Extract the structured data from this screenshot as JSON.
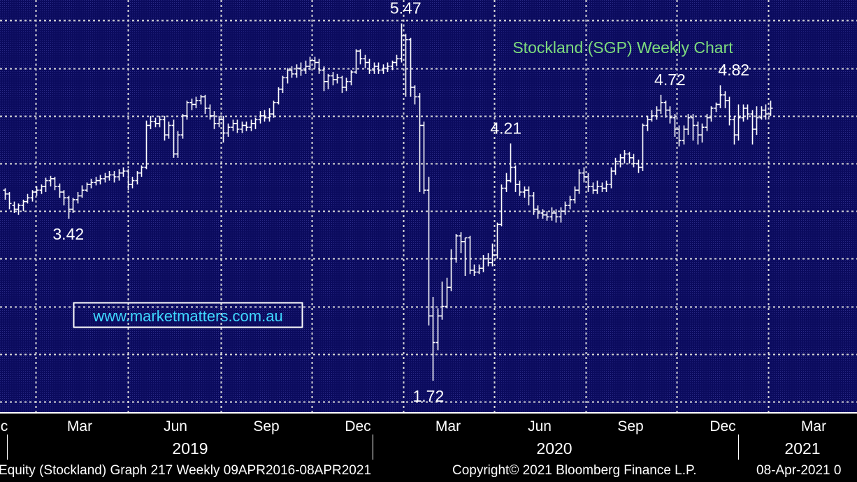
{
  "chart_data": {
    "type": "ohlc",
    "title": "Stockland (SGP) Weekly Chart",
    "watermark": "www.marketmatters.com.au",
    "ylim": [
      1.5,
      5.65
    ],
    "grid": true,
    "colors": {
      "background": "#0b0b5e",
      "bars": "#ffffff",
      "grid": "#d8d8d8",
      "title": "#7ddc7d",
      "watermark": "#3fd8ff"
    },
    "month_ticks": [
      "c",
      "Mar",
      "Jun",
      "Sep",
      "Dec",
      "Mar",
      "Jun",
      "Sep",
      "Dec",
      "Mar"
    ],
    "years": [
      "2019",
      "2020",
      "2021"
    ],
    "annotations": [
      {
        "text": "5.47",
        "week": 88,
        "value": 5.47
      },
      {
        "text": "3.42",
        "week": 14,
        "value": 3.42
      },
      {
        "text": "1.72",
        "week": 93,
        "value": 1.72
      },
      {
        "text": "4.21",
        "week": 110,
        "value": 4.21
      },
      {
        "text": "4.72",
        "week": 146,
        "value": 4.72
      },
      {
        "text": "4.82",
        "week": 160,
        "value": 4.82
      }
    ],
    "series": [
      {
        "values": [
          [
            3.72,
            3.68,
            3.74,
            3.62
          ],
          [
            3.68,
            3.58,
            3.7,
            3.52
          ],
          [
            3.56,
            3.52,
            3.6,
            3.48
          ],
          [
            3.52,
            3.56,
            3.58,
            3.46
          ],
          [
            3.56,
            3.6,
            3.62,
            3.5
          ],
          [
            3.6,
            3.64,
            3.68,
            3.58
          ],
          [
            3.64,
            3.7,
            3.72,
            3.6
          ],
          [
            3.7,
            3.72,
            3.76,
            3.66
          ],
          [
            3.72,
            3.76,
            3.78,
            3.68
          ],
          [
            3.76,
            3.82,
            3.85,
            3.7
          ],
          [
            3.82,
            3.84,
            3.87,
            3.76
          ],
          [
            3.84,
            3.76,
            3.86,
            3.72
          ],
          [
            3.76,
            3.7,
            3.79,
            3.64
          ],
          [
            3.7,
            3.64,
            3.72,
            3.56
          ],
          [
            3.64,
            3.52,
            3.66,
            3.42
          ],
          [
            3.52,
            3.62,
            3.64,
            3.48
          ],
          [
            3.62,
            3.66,
            3.7,
            3.58
          ],
          [
            3.66,
            3.72,
            3.77,
            3.64
          ],
          [
            3.72,
            3.78,
            3.8,
            3.7
          ],
          [
            3.78,
            3.8,
            3.84,
            3.74
          ],
          [
            3.8,
            3.82,
            3.86,
            3.77
          ],
          [
            3.82,
            3.84,
            3.88,
            3.78
          ],
          [
            3.84,
            3.86,
            3.9,
            3.8
          ],
          [
            3.86,
            3.88,
            3.92,
            3.82
          ],
          [
            3.88,
            3.86,
            3.92,
            3.8
          ],
          [
            3.86,
            3.9,
            3.94,
            3.82
          ],
          [
            3.9,
            3.92,
            3.96,
            3.86
          ],
          [
            3.92,
            3.78,
            3.94,
            3.72
          ],
          [
            3.78,
            3.82,
            3.86,
            3.74
          ],
          [
            3.82,
            3.9,
            3.92,
            3.78
          ],
          [
            3.9,
            3.96,
            3.98,
            3.86
          ],
          [
            3.96,
            4.4,
            4.45,
            3.94
          ],
          [
            4.4,
            4.44,
            4.5,
            4.36
          ],
          [
            4.44,
            4.42,
            4.48,
            4.38
          ],
          [
            4.42,
            4.46,
            4.5,
            4.38
          ],
          [
            4.46,
            4.3,
            4.5,
            4.24
          ],
          [
            4.3,
            4.4,
            4.44,
            4.26
          ],
          [
            4.4,
            4.1,
            4.46,
            4.06
          ],
          [
            4.1,
            4.3,
            4.34,
            4.06
          ],
          [
            4.3,
            4.5,
            4.52,
            4.26
          ],
          [
            4.5,
            4.64,
            4.66,
            4.46
          ],
          [
            4.64,
            4.62,
            4.68,
            4.56
          ],
          [
            4.62,
            4.66,
            4.7,
            4.58
          ],
          [
            4.66,
            4.7,
            4.72,
            4.62
          ],
          [
            4.7,
            4.58,
            4.72,
            4.52
          ],
          [
            4.58,
            4.5,
            4.62,
            4.46
          ],
          [
            4.5,
            4.42,
            4.55,
            4.36
          ],
          [
            4.42,
            4.46,
            4.5,
            4.38
          ],
          [
            4.46,
            4.32,
            4.5,
            4.22
          ],
          [
            4.32,
            4.38,
            4.42,
            4.28
          ],
          [
            4.38,
            4.42,
            4.46,
            4.34
          ],
          [
            4.42,
            4.36,
            4.46,
            4.32
          ],
          [
            4.36,
            4.4,
            4.44,
            4.32
          ],
          [
            4.4,
            4.38,
            4.44,
            4.34
          ],
          [
            4.38,
            4.42,
            4.46,
            4.34
          ],
          [
            4.42,
            4.46,
            4.48,
            4.36
          ],
          [
            4.46,
            4.5,
            4.55,
            4.42
          ],
          [
            4.5,
            4.48,
            4.56,
            4.44
          ],
          [
            4.48,
            4.52,
            4.58,
            4.44
          ],
          [
            4.52,
            4.64,
            4.66,
            4.48
          ],
          [
            4.64,
            4.78,
            4.8,
            4.62
          ],
          [
            4.78,
            4.9,
            4.92,
            4.74
          ],
          [
            4.9,
            4.98,
            5.0,
            4.84
          ],
          [
            4.98,
            4.94,
            5.02,
            4.9
          ],
          [
            4.94,
            5.0,
            5.04,
            4.9
          ],
          [
            5.0,
            4.98,
            5.06,
            4.92
          ],
          [
            4.98,
            5.02,
            5.08,
            4.94
          ],
          [
            5.02,
            5.08,
            5.12,
            4.98
          ],
          [
            5.08,
            5.06,
            5.12,
            5.0
          ],
          [
            5.06,
            4.98,
            5.1,
            4.94
          ],
          [
            4.98,
            4.86,
            5.02,
            4.76
          ],
          [
            4.86,
            4.92,
            4.94,
            4.78
          ],
          [
            4.92,
            4.88,
            4.96,
            4.82
          ],
          [
            4.88,
            4.9,
            4.94,
            4.84
          ],
          [
            4.9,
            4.8,
            4.92,
            4.74
          ],
          [
            4.8,
            4.86,
            4.9,
            4.76
          ],
          [
            4.86,
            4.96,
            4.98,
            4.82
          ],
          [
            4.96,
            5.18,
            5.2,
            4.94
          ],
          [
            5.18,
            5.1,
            5.2,
            5.04
          ],
          [
            5.1,
            5.06,
            5.14,
            5.0
          ],
          [
            5.06,
            4.98,
            5.1,
            4.94
          ],
          [
            4.98,
            5.02,
            5.06,
            4.94
          ],
          [
            5.02,
            4.98,
            5.06,
            4.94
          ],
          [
            4.98,
            5.0,
            5.04,
            4.94
          ],
          [
            5.0,
            5.02,
            5.06,
            4.96
          ],
          [
            5.02,
            5.06,
            5.08,
            4.98
          ],
          [
            5.06,
            5.1,
            5.14,
            5.02
          ],
          [
            5.1,
            5.34,
            5.47,
            5.06
          ],
          [
            5.34,
            5.3,
            5.36,
            4.7
          ],
          [
            5.3,
            4.8,
            5.32,
            4.7
          ],
          [
            4.8,
            4.7,
            4.82,
            4.62
          ],
          [
            4.7,
            4.4,
            4.74,
            3.7
          ],
          [
            4.4,
            3.72,
            4.44,
            3.68
          ],
          [
            3.72,
            2.4,
            3.86,
            2.3
          ],
          [
            2.4,
            2.12,
            2.6,
            1.72
          ],
          [
            2.12,
            2.4,
            2.48,
            2.04
          ],
          [
            2.4,
            2.5,
            2.76,
            2.36
          ],
          [
            2.5,
            2.7,
            2.8,
            2.48
          ],
          [
            2.7,
            3.0,
            3.1,
            2.66
          ],
          [
            3.0,
            3.24,
            3.26,
            2.96
          ],
          [
            3.24,
            3.18,
            3.28,
            3.06
          ],
          [
            3.18,
            3.22,
            3.22,
            2.82
          ],
          [
            3.22,
            2.88,
            3.24,
            2.84
          ],
          [
            2.88,
            2.86,
            2.94,
            2.82
          ],
          [
            2.86,
            2.9,
            2.94,
            2.84
          ],
          [
            2.9,
            3.0,
            3.04,
            2.86
          ],
          [
            3.0,
            2.96,
            3.06,
            2.92
          ],
          [
            2.96,
            3.04,
            3.16,
            2.92
          ],
          [
            3.04,
            3.36,
            3.38,
            3.0
          ],
          [
            3.36,
            3.74,
            3.78,
            3.34
          ],
          [
            3.74,
            3.82,
            3.9,
            3.7
          ],
          [
            3.82,
            3.96,
            4.21,
            3.8
          ],
          [
            3.96,
            3.78,
            3.98,
            3.7
          ],
          [
            3.78,
            3.7,
            3.82,
            3.66
          ],
          [
            3.7,
            3.72,
            3.76,
            3.64
          ],
          [
            3.72,
            3.66,
            3.76,
            3.56
          ],
          [
            3.66,
            3.52,
            3.7,
            3.46
          ],
          [
            3.52,
            3.48,
            3.56,
            3.42
          ],
          [
            3.48,
            3.46,
            3.52,
            3.42
          ],
          [
            3.46,
            3.44,
            3.5,
            3.4
          ],
          [
            3.44,
            3.48,
            3.54,
            3.4
          ],
          [
            3.48,
            3.44,
            3.52,
            3.38
          ],
          [
            3.44,
            3.5,
            3.54,
            3.38
          ],
          [
            3.5,
            3.56,
            3.6,
            3.46
          ],
          [
            3.56,
            3.62,
            3.66,
            3.52
          ],
          [
            3.62,
            3.72,
            3.76,
            3.58
          ],
          [
            3.72,
            3.9,
            3.94,
            3.68
          ],
          [
            3.9,
            3.86,
            3.96,
            3.8
          ],
          [
            3.86,
            3.76,
            3.9,
            3.7
          ],
          [
            3.76,
            3.72,
            3.8,
            3.68
          ],
          [
            3.72,
            3.76,
            3.82,
            3.68
          ],
          [
            3.76,
            3.74,
            3.8,
            3.7
          ],
          [
            3.74,
            3.78,
            3.82,
            3.7
          ],
          [
            3.78,
            3.92,
            3.96,
            3.74
          ],
          [
            3.92,
            4.02,
            4.06,
            3.88
          ],
          [
            4.02,
            4.06,
            4.1,
            3.96
          ],
          [
            4.06,
            4.1,
            4.14,
            4.0
          ],
          [
            4.1,
            4.06,
            4.12,
            4.0
          ],
          [
            4.06,
            4.0,
            4.1,
            3.96
          ],
          [
            4.0,
            3.96,
            4.04,
            3.9
          ],
          [
            3.96,
            4.4,
            4.42,
            3.92
          ],
          [
            4.4,
            4.46,
            4.5,
            4.34
          ],
          [
            4.46,
            4.5,
            4.56,
            4.44
          ],
          [
            4.5,
            4.56,
            4.6,
            4.46
          ],
          [
            4.56,
            4.64,
            4.72,
            4.52
          ],
          [
            4.64,
            4.56,
            4.66,
            4.48
          ],
          [
            4.56,
            4.48,
            4.6,
            4.42
          ],
          [
            4.48,
            4.36,
            4.52,
            4.28
          ],
          [
            4.36,
            4.24,
            4.4,
            4.18
          ],
          [
            4.24,
            4.36,
            4.4,
            4.2
          ],
          [
            4.36,
            4.48,
            4.52,
            4.3
          ],
          [
            4.48,
            4.4,
            4.52,
            4.24
          ],
          [
            4.4,
            4.3,
            4.44,
            4.2
          ],
          [
            4.3,
            4.38,
            4.42,
            4.22
          ],
          [
            4.38,
            4.48,
            4.52,
            4.34
          ],
          [
            4.48,
            4.58,
            4.6,
            4.44
          ],
          [
            4.58,
            4.62,
            4.64,
            4.54
          ],
          [
            4.62,
            4.72,
            4.82,
            4.58
          ],
          [
            4.72,
            4.66,
            4.76,
            4.58
          ],
          [
            4.66,
            4.46,
            4.7,
            4.4
          ],
          [
            4.46,
            4.3,
            4.5,
            4.2
          ],
          [
            4.3,
            4.48,
            4.62,
            4.24
          ],
          [
            4.48,
            4.58,
            4.62,
            4.44
          ],
          [
            4.58,
            4.52,
            4.62,
            4.46
          ],
          [
            4.52,
            4.36,
            4.56,
            4.2
          ],
          [
            4.36,
            4.48,
            4.6,
            4.3
          ],
          [
            4.48,
            4.56,
            4.6,
            4.46
          ],
          [
            4.56,
            4.52,
            4.62,
            4.46
          ],
          [
            4.52,
            4.58,
            4.66,
            4.5
          ]
        ]
      }
    ]
  },
  "footer": {
    "left": "Equity (Stockland) Graph 217  Weekly 09APR2016-08APR2021",
    "copyright": "Copyright© 2021 Bloomberg Finance L.P.",
    "date": "08-Apr-2021 0"
  }
}
